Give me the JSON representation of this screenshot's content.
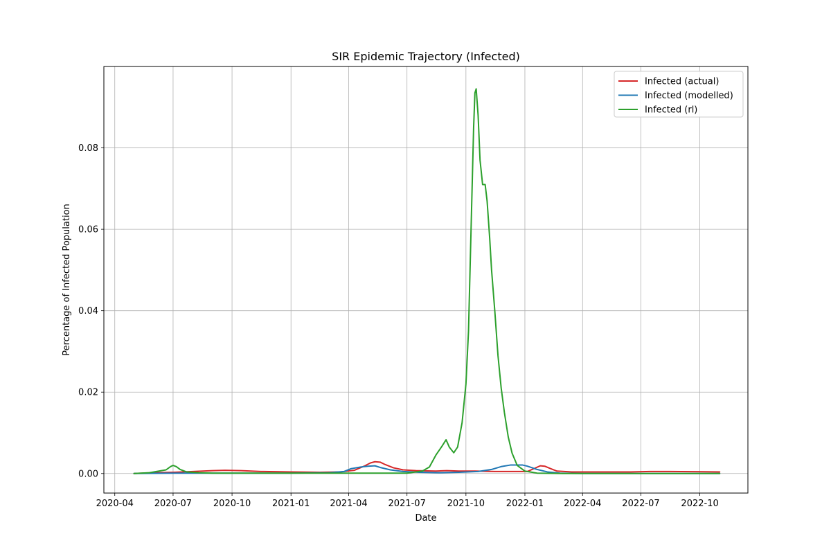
{
  "chart_data": {
    "type": "line",
    "title": "SIR Epidemic Trajectory (Infected)",
    "xlabel": "Date",
    "ylabel": "Percentage of Infected Population",
    "x_axis": "date",
    "xlim": [
      "2020-03-15",
      "2022-12-15"
    ],
    "ylim": [
      -0.0048,
      0.1
    ],
    "grid": true,
    "legend_position": "top-right",
    "x_ticks": [
      {
        "date": "2020-04-01",
        "label": "2020-04"
      },
      {
        "date": "2020-07-01",
        "label": "2020-07"
      },
      {
        "date": "2020-10-01",
        "label": "2020-10"
      },
      {
        "date": "2021-01-01",
        "label": "2021-01"
      },
      {
        "date": "2021-04-01",
        "label": "2021-04"
      },
      {
        "date": "2021-07-01",
        "label": "2021-07"
      },
      {
        "date": "2021-10-01",
        "label": "2021-10"
      },
      {
        "date": "2022-01-01",
        "label": "2022-01"
      },
      {
        "date": "2022-04-01",
        "label": "2022-04"
      },
      {
        "date": "2022-07-01",
        "label": "2022-07"
      },
      {
        "date": "2022-10-01",
        "label": "2022-10"
      }
    ],
    "y_ticks": [
      {
        "value": 0.0,
        "label": "0.00"
      },
      {
        "value": 0.02,
        "label": "0.02"
      },
      {
        "value": 0.04,
        "label": "0.04"
      },
      {
        "value": 0.06,
        "label": "0.06"
      },
      {
        "value": 0.08,
        "label": "0.08"
      }
    ],
    "series": [
      {
        "name": "Infected (actual)",
        "color": "#d62728",
        "points": [
          [
            "2020-05-01",
            0.0
          ],
          [
            "2020-06-01",
            0.0002
          ],
          [
            "2020-07-01",
            0.0003
          ],
          [
            "2020-08-01",
            0.0005
          ],
          [
            "2020-09-01",
            0.0007
          ],
          [
            "2020-09-20",
            0.0008
          ],
          [
            "2020-10-15",
            0.0007
          ],
          [
            "2020-11-15",
            0.0005
          ],
          [
            "2021-01-01",
            0.0004
          ],
          [
            "2021-02-15",
            0.0003
          ],
          [
            "2021-03-20",
            0.0004
          ],
          [
            "2021-04-10",
            0.0008
          ],
          [
            "2021-04-25",
            0.0018
          ],
          [
            "2021-05-05",
            0.0026
          ],
          [
            "2021-05-12",
            0.0029
          ],
          [
            "2021-05-20",
            0.0028
          ],
          [
            "2021-05-28",
            0.0022
          ],
          [
            "2021-06-10",
            0.0014
          ],
          [
            "2021-06-25",
            0.0009
          ],
          [
            "2021-07-15",
            0.0007
          ],
          [
            "2021-08-15",
            0.0006
          ],
          [
            "2021-09-01",
            0.0007
          ],
          [
            "2021-09-20",
            0.0006
          ],
          [
            "2021-10-15",
            0.0006
          ],
          [
            "2021-11-15",
            0.0005
          ],
          [
            "2021-12-20",
            0.0005
          ],
          [
            "2022-01-05",
            0.0005
          ],
          [
            "2022-01-15",
            0.0012
          ],
          [
            "2022-01-25",
            0.0019
          ],
          [
            "2022-02-01",
            0.0018
          ],
          [
            "2022-02-10",
            0.0012
          ],
          [
            "2022-02-20",
            0.0006
          ],
          [
            "2022-03-15",
            0.0004
          ],
          [
            "2022-05-01",
            0.0004
          ],
          [
            "2022-06-15",
            0.0004
          ],
          [
            "2022-07-15",
            0.0005
          ],
          [
            "2022-08-15",
            0.0005
          ],
          [
            "2022-11-01",
            0.0004
          ]
        ]
      },
      {
        "name": "Infected (modelled)",
        "color": "#1f77b4",
        "points": [
          [
            "2020-05-01",
            0.0
          ],
          [
            "2020-07-01",
            0.0001
          ],
          [
            "2020-10-01",
            0.0001
          ],
          [
            "2021-01-01",
            0.0001
          ],
          [
            "2021-03-01",
            0.0002
          ],
          [
            "2021-03-25",
            0.0005
          ],
          [
            "2021-04-05",
            0.0012
          ],
          [
            "2021-04-20",
            0.0016
          ],
          [
            "2021-05-01",
            0.0018
          ],
          [
            "2021-05-12",
            0.0019
          ],
          [
            "2021-05-20",
            0.0015
          ],
          [
            "2021-06-05",
            0.0009
          ],
          [
            "2021-06-25",
            0.0005
          ],
          [
            "2021-07-20",
            0.0003
          ],
          [
            "2021-08-20",
            0.0002
          ],
          [
            "2021-09-20",
            0.0003
          ],
          [
            "2021-10-20",
            0.0005
          ],
          [
            "2021-11-10",
            0.001
          ],
          [
            "2021-11-25",
            0.0017
          ],
          [
            "2021-12-10",
            0.0021
          ],
          [
            "2021-12-28",
            0.0021
          ],
          [
            "2022-01-05",
            0.0018
          ],
          [
            "2022-01-20",
            0.001
          ],
          [
            "2022-02-05",
            0.0004
          ],
          [
            "2022-02-25",
            0.0001
          ],
          [
            "2022-04-01",
            0.0
          ],
          [
            "2022-11-01",
            0.0
          ]
        ]
      },
      {
        "name": "Infected (rl)",
        "color": "#2ca02c",
        "points": [
          [
            "2020-05-01",
            0.0
          ],
          [
            "2020-05-25",
            0.0002
          ],
          [
            "2020-06-05",
            0.0005
          ],
          [
            "2020-06-20",
            0.0009
          ],
          [
            "2020-06-27",
            0.0017
          ],
          [
            "2020-07-01",
            0.002
          ],
          [
            "2020-07-06",
            0.0017
          ],
          [
            "2020-07-12",
            0.001
          ],
          [
            "2020-07-22",
            0.0004
          ],
          [
            "2020-08-10",
            0.0002
          ],
          [
            "2020-09-01",
            0.0001
          ],
          [
            "2020-10-01",
            0.0001
          ],
          [
            "2021-07-01",
            0.0001
          ],
          [
            "2021-07-25",
            0.0006
          ],
          [
            "2021-08-05",
            0.0016
          ],
          [
            "2021-08-15",
            0.0045
          ],
          [
            "2021-08-25",
            0.0068
          ],
          [
            "2021-08-31",
            0.0083
          ],
          [
            "2021-09-05",
            0.0065
          ],
          [
            "2021-09-12",
            0.0051
          ],
          [
            "2021-09-18",
            0.0065
          ],
          [
            "2021-09-25",
            0.0125
          ],
          [
            "2021-10-01",
            0.022
          ],
          [
            "2021-10-05",
            0.035
          ],
          [
            "2021-10-09",
            0.06
          ],
          [
            "2021-10-13",
            0.085
          ],
          [
            "2021-10-15",
            0.0935
          ],
          [
            "2021-10-17",
            0.0945
          ],
          [
            "2021-10-20",
            0.088
          ],
          [
            "2021-10-23",
            0.077
          ],
          [
            "2021-10-27",
            0.071
          ],
          [
            "2021-10-31",
            0.071
          ],
          [
            "2021-11-03",
            0.067
          ],
          [
            "2021-11-07",
            0.058
          ],
          [
            "2021-11-10",
            0.05
          ],
          [
            "2021-11-15",
            0.04
          ],
          [
            "2021-11-20",
            0.029
          ],
          [
            "2021-11-25",
            0.021
          ],
          [
            "2021-11-30",
            0.015
          ],
          [
            "2021-12-06",
            0.009
          ],
          [
            "2021-12-12",
            0.005
          ],
          [
            "2021-12-20",
            0.002
          ],
          [
            "2022-01-01",
            0.0006
          ],
          [
            "2022-01-20",
            0.0001
          ],
          [
            "2022-03-01",
            0.0
          ],
          [
            "2022-11-01",
            0.0
          ]
        ]
      }
    ]
  }
}
